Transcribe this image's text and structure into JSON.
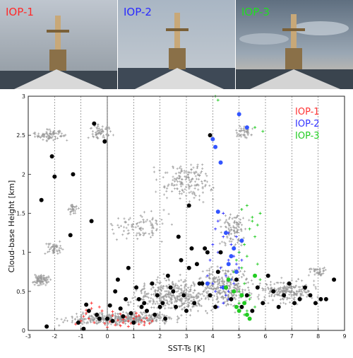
{
  "photos": [
    {
      "label": "IOP-1",
      "color": "#ff2a2a"
    },
    {
      "label": "IOP-2",
      "color": "#2a2aff"
    },
    {
      "label": "IOP-3",
      "color": "#22dd22"
    }
  ],
  "chart_data": {
    "type": "scatter",
    "xlabel": "SST-Ts [K]",
    "ylabel": "Cloud-base Height [km]",
    "xlim": [
      -3,
      9
    ],
    "ylim": [
      0,
      3
    ],
    "xticks": [
      "-3",
      "-2",
      "-1",
      "0",
      "1",
      "2",
      "3",
      "4",
      "5",
      "6",
      "7",
      "8",
      "9"
    ],
    "yticks": [
      "0",
      "0.5",
      "1",
      "1.5",
      "2",
      "2.5",
      "3"
    ],
    "grid": "vertical dotted",
    "legend_position": "top-right",
    "legend": [
      {
        "name": "IOP-1",
        "color": "#ff3333"
      },
      {
        "name": "IOP-2",
        "color": "#3333ff"
      },
      {
        "name": "IOP-3",
        "color": "#22cc22"
      }
    ],
    "series": [
      {
        "name": "IOP-1",
        "marker": "plus",
        "color": "#ff3333",
        "x": [
          -1.2,
          -1.0,
          -0.9,
          -0.8,
          -0.7,
          -0.6,
          -0.5,
          -0.4,
          -0.3,
          -0.2,
          -0.1,
          0.0,
          0.1,
          0.2,
          0.3,
          0.4,
          0.5,
          0.6,
          0.7,
          0.8,
          0.9,
          1.0,
          1.1,
          1.2,
          1.3,
          1.4,
          1.5,
          1.6,
          1.7,
          -0.6,
          -0.3,
          0.2,
          0.5,
          0.8,
          1.1,
          1.4,
          -0.8,
          0.0,
          0.6,
          1.2
        ],
        "y": [
          0.08,
          0.12,
          0.18,
          0.22,
          0.15,
          0.28,
          0.1,
          0.2,
          0.14,
          0.25,
          0.09,
          0.16,
          0.11,
          0.19,
          0.07,
          0.13,
          0.21,
          0.1,
          0.17,
          0.12,
          0.09,
          0.15,
          0.18,
          0.08,
          0.13,
          0.11,
          0.16,
          0.09,
          0.12,
          0.35,
          0.3,
          0.24,
          0.06,
          0.05,
          0.22,
          0.07,
          0.26,
          0.04,
          0.14,
          0.19
        ]
      },
      {
        "name": "IOP-2",
        "marker": "plus",
        "color": "#3333ff",
        "x": [
          3.9,
          4.0,
          4.1,
          4.2,
          4.3,
          4.4,
          4.5,
          4.6,
          4.7,
          4.8,
          4.9,
          5.0,
          4.1,
          4.3,
          4.5,
          4.7,
          4.9,
          4.2,
          4.4,
          4.6,
          4.8,
          5.0,
          4.0,
          4.4,
          4.6,
          3.8,
          4.2,
          4.6,
          5.1,
          4.9
        ],
        "y": [
          0.9,
          1.1,
          1.3,
          1.0,
          0.8,
          1.2,
          0.7,
          0.9,
          1.1,
          0.6,
          0.85,
          1.0,
          0.5,
          0.55,
          0.45,
          0.65,
          0.75,
          1.4,
          1.5,
          1.25,
          0.95,
          0.8,
          0.6,
          0.35,
          0.4,
          0.7,
          0.3,
          0.5,
          0.9,
          1.2
        ]
      },
      {
        "name": "IOP-3",
        "marker": "plus",
        "color": "#22cc22",
        "x": [
          4.9,
          5.0,
          5.1,
          5.2,
          5.3,
          5.4,
          5.5,
          5.6,
          5.7,
          5.8,
          5.0,
          5.2,
          5.4,
          5.6,
          5.8,
          5.1,
          5.3,
          5.5,
          5.7,
          4.8,
          5.0,
          5.3,
          5.6,
          4.1,
          4.2,
          5.6,
          5.9,
          5.2,
          5.4,
          4.4
        ],
        "y": [
          0.9,
          1.0,
          0.8,
          1.1,
          0.95,
          1.3,
          1.4,
          1.2,
          0.85,
          1.5,
          0.5,
          0.6,
          0.45,
          0.7,
          0.65,
          1.55,
          1.6,
          1.45,
          1.35,
          0.75,
          0.35,
          0.25,
          0.3,
          3.0,
          2.95,
          2.6,
          2.55,
          0.2,
          0.4,
          0.55
        ]
      },
      {
        "name": "",
        "marker": "dot",
        "color": "#000000",
        "x": [
          -2.5,
          -2.3,
          -2.1,
          -2.0,
          -1.4,
          -1.3,
          -0.9,
          -0.8,
          -0.5,
          -0.4,
          -0.1,
          0.0,
          0.1,
          0.3,
          0.5,
          0.7,
          0.9,
          1.1,
          1.3,
          1.5,
          1.7,
          1.9,
          2.1,
          2.3,
          2.5,
          2.7,
          2.9,
          3.1,
          3.3,
          3.5,
          3.7,
          3.9,
          4.1,
          4.3,
          4.5,
          4.7,
          4.9,
          5.1,
          5.3,
          5.5,
          5.7,
          5.9,
          6.1,
          6.3,
          6.5,
          6.7,
          6.9,
          7.1,
          7.3,
          7.5,
          7.7,
          7.9,
          8.1,
          8.3,
          8.6,
          -1.1,
          -0.7,
          -0.3,
          0.2,
          0.6,
          1.0,
          1.4,
          1.8,
          2.2,
          2.6,
          3.0,
          3.4,
          3.8,
          4.2,
          0.4,
          0.8,
          1.2,
          2.0,
          2.4,
          2.8,
          3.2,
          3.6,
          -0.6,
          3.1,
          3.9
        ],
        "y": [
          1.67,
          0.05,
          2.23,
          1.97,
          1.22,
          2.0,
          0.02,
          0.33,
          2.65,
          0.2,
          2.42,
          0.15,
          0.32,
          0.5,
          0.28,
          0.4,
          0.22,
          0.55,
          0.3,
          0.25,
          0.6,
          0.45,
          0.35,
          0.7,
          0.5,
          1.2,
          0.45,
          0.8,
          0.35,
          0.6,
          1.05,
          0.45,
          0.3,
          1.0,
          0.55,
          0.4,
          0.65,
          0.3,
          0.45,
          0.25,
          0.55,
          0.35,
          0.7,
          0.5,
          0.3,
          0.45,
          0.6,
          0.35,
          0.4,
          0.55,
          0.45,
          0.35,
          0.4,
          0.4,
          0.65,
          0.1,
          0.25,
          0.15,
          0.12,
          0.18,
          0.1,
          0.35,
          0.2,
          0.15,
          0.3,
          0.25,
          0.85,
          1.0,
          0.75,
          0.65,
          0.8,
          0.4,
          0.3,
          0.55,
          0.9,
          1.05,
          0.6,
          1.4,
          1.6,
          2.5
        ]
      },
      {
        "name": "",
        "marker": "dot",
        "color": "#3355ff",
        "x": [
          4.0,
          4.1,
          4.3,
          5.0,
          5.3,
          4.2,
          4.5,
          4.7,
          4.9,
          5.1,
          4.4,
          3.8,
          4.6,
          4.8
        ],
        "y": [
          2.45,
          2.35,
          2.15,
          2.77,
          2.6,
          1.52,
          1.25,
          0.95,
          0.75,
          1.15,
          0.55,
          0.6,
          0.85,
          1.05
        ]
      },
      {
        "name": "",
        "marker": "dot",
        "color": "#22cc22",
        "x": [
          4.9,
          5.0,
          5.3,
          4.5,
          5.4,
          4.8,
          5.6,
          5.2,
          4.6,
          5.1
        ],
        "y": [
          0.3,
          0.25,
          0.2,
          0.55,
          0.15,
          0.5,
          0.7,
          0.35,
          0.65,
          0.45
        ]
      }
    ]
  }
}
